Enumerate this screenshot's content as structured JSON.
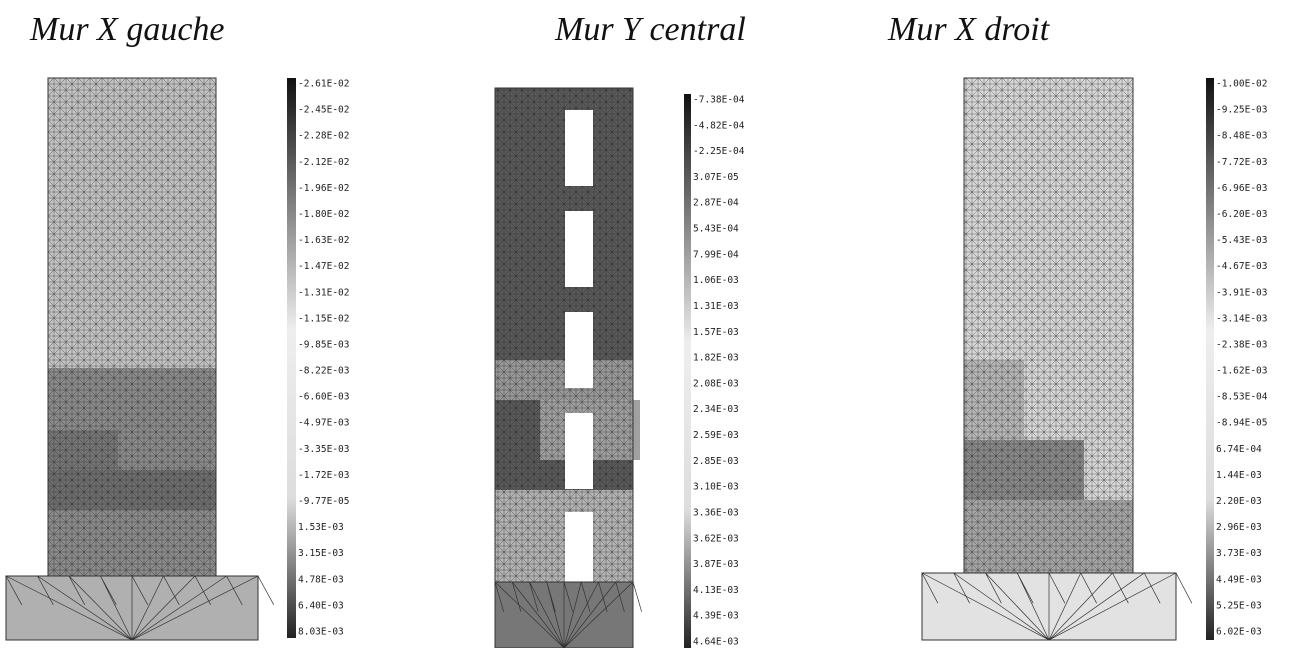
{
  "panels": [
    {
      "title": "Mur X gauche",
      "scale": [
        "-2.61E-02",
        "-2.45E-02",
        "-2.28E-02",
        "-2.12E-02",
        "-1.96E-02",
        "-1.80E-02",
        "-1.63E-02",
        "-1.47E-02",
        "-1.31E-02",
        "-1.15E-02",
        "-9.85E-03",
        "-8.22E-03",
        "-6.60E-03",
        "-4.97E-03",
        "-3.35E-03",
        "-1.72E-03",
        "-9.77E-05",
        "1.53E-03",
        "3.15E-03",
        "4.78E-03",
        "6.40E-03",
        "8.03E-03"
      ]
    },
    {
      "title": "Mur Y central",
      "scale": [
        "-7.38E-04",
        "-4.82E-04",
        "-2.25E-04",
        "3.07E-05",
        "2.87E-04",
        "5.43E-04",
        "7.99E-04",
        "1.06E-03",
        "1.31E-03",
        "1.57E-03",
        "1.82E-03",
        "2.08E-03",
        "2.34E-03",
        "2.59E-03",
        "2.85E-03",
        "3.10E-03",
        "3.36E-03",
        "3.62E-03",
        "3.87E-03",
        "4.13E-03",
        "4.39E-03",
        "4.64E-03"
      ]
    },
    {
      "title": "Mur X droit",
      "scale": [
        "-1.00E-02",
        "-9.25E-03",
        "-8.48E-03",
        "-7.72E-03",
        "-6.96E-03",
        "-6.20E-03",
        "-5.43E-03",
        "-4.67E-03",
        "-3.91E-03",
        "-3.14E-03",
        "-2.38E-03",
        "-1.62E-03",
        "-8.53E-04",
        "-8.94E-05",
        "6.74E-04",
        "1.44E-03",
        "2.20E-03",
        "2.96E-03",
        "3.73E-03",
        "4.49E-03",
        "5.25E-03",
        "6.02E-03"
      ]
    }
  ]
}
